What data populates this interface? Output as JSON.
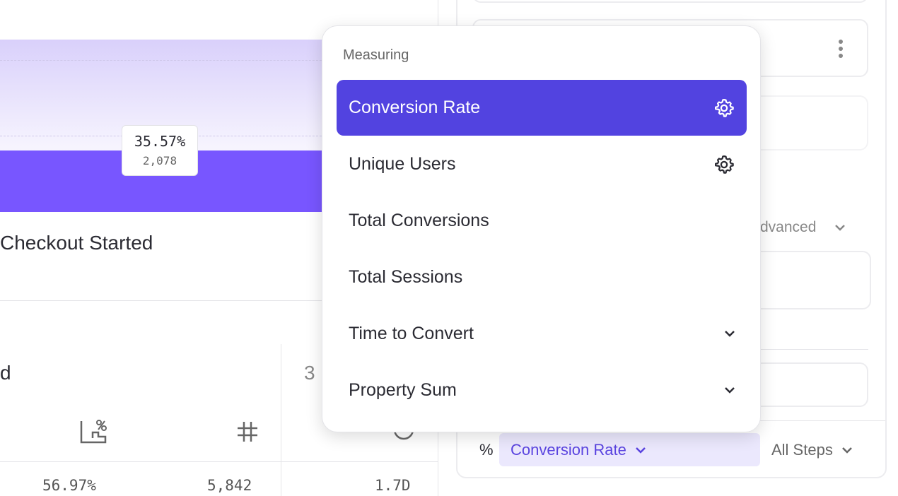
{
  "chart": {
    "conversion_percent": "35.57%",
    "count": "2,078",
    "step_label": "Checkout Started",
    "bar_color": "#7856ff"
  },
  "table": {
    "col1_header_partial": "d",
    "col2_header_partial": "3",
    "icons": [
      "percent-chart-icon",
      "hash-icon",
      "clock-icon"
    ],
    "values": [
      "56.97%",
      "5,842",
      "1.7D"
    ]
  },
  "right_panel": {
    "advanced_label": "dvanced",
    "footer": {
      "percent_symbol": "%",
      "measure_label": "Conversion Rate",
      "steps_label": "All Steps"
    }
  },
  "menu": {
    "title": "Measuring",
    "items": [
      {
        "label": "Conversion Rate",
        "selected": true,
        "icon": "gear-icon"
      },
      {
        "label": "Unique Users",
        "icon": "gear-icon"
      },
      {
        "label": "Total Conversions"
      },
      {
        "label": "Total Sessions"
      },
      {
        "label": "Time to Convert",
        "icon": "chevron-down-icon"
      },
      {
        "label": "Property Sum",
        "icon": "chevron-down-icon"
      }
    ]
  },
  "colors": {
    "accent": "#5243e0",
    "accent_light": "#ebe8fd"
  }
}
